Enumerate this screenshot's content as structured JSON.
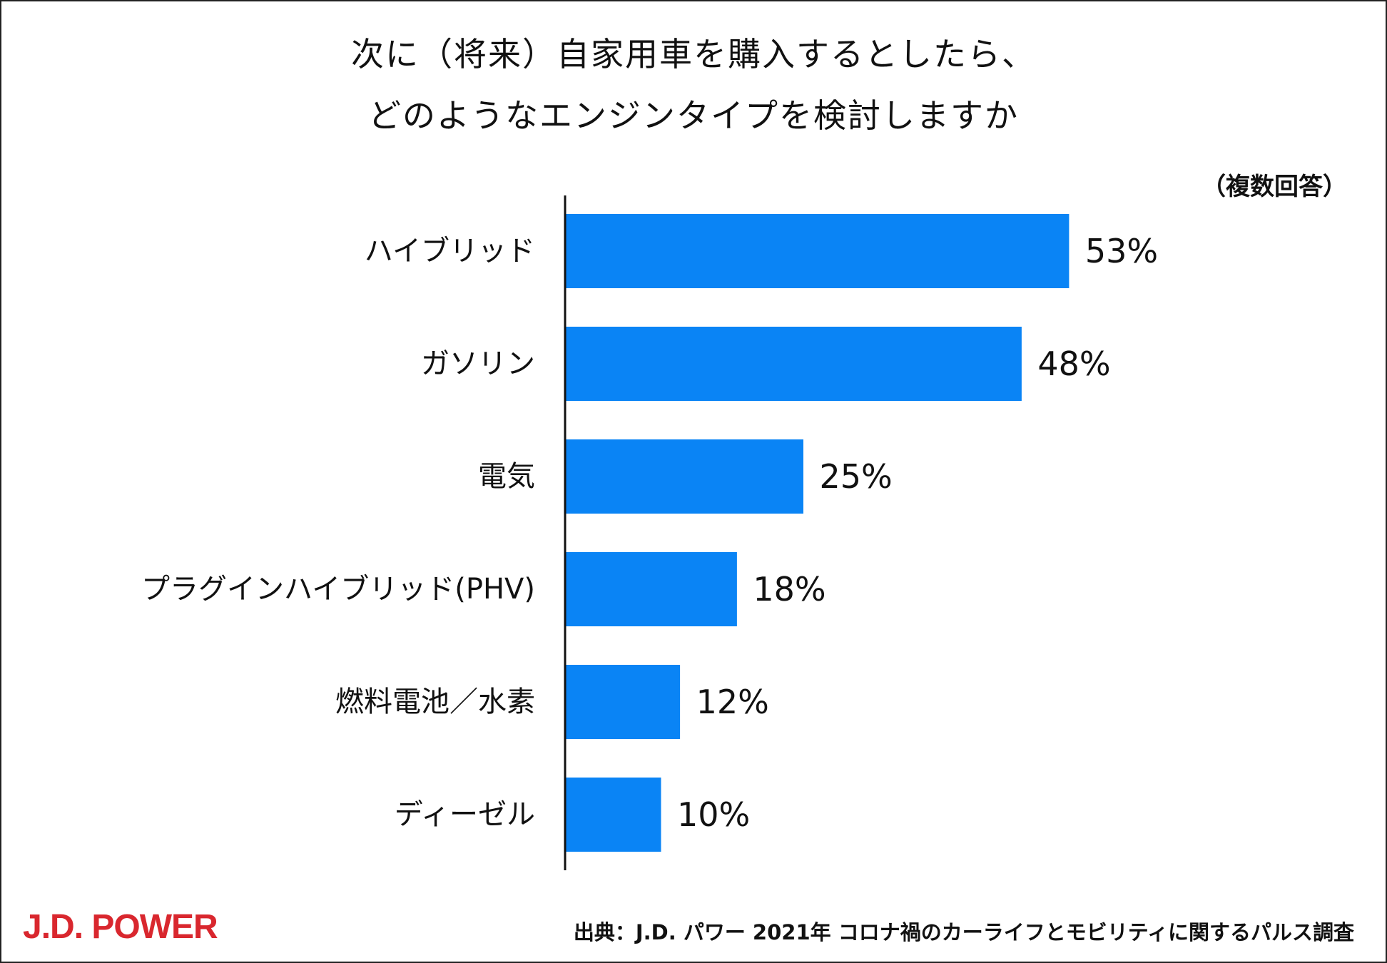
{
  "title_line1": "次に（将来）自家用車を購入するとしたら、",
  "title_line2": "どのようなエンジンタイプを検討しますか",
  "note": "（複数回答）",
  "logo": "J.D. POWER",
  "source": "出典：J.D. パワー 2021年 コロナ禍のカーライフとモビリティに関するパルス調査",
  "colors": {
    "bar": "#0a84f5",
    "logo": "#d9272e",
    "axis": "#111111"
  },
  "chart_data": {
    "type": "bar",
    "orientation": "horizontal",
    "title": "次に（将来）自家用車を購入するとしたら、どのようなエンジンタイプを検討しますか",
    "categories": [
      "ハイブリッド",
      "ガソリン",
      "電気",
      "プラグインハイブリッド(PHV)",
      "燃料電池／水素",
      "ディーゼル"
    ],
    "values": [
      53,
      48,
      25,
      18,
      12,
      10
    ],
    "value_labels": [
      "53%",
      "48%",
      "25%",
      "18%",
      "12%",
      "10%"
    ],
    "unit": "%",
    "xlim": [
      0,
      100
    ],
    "grid": false,
    "legend": "none"
  }
}
